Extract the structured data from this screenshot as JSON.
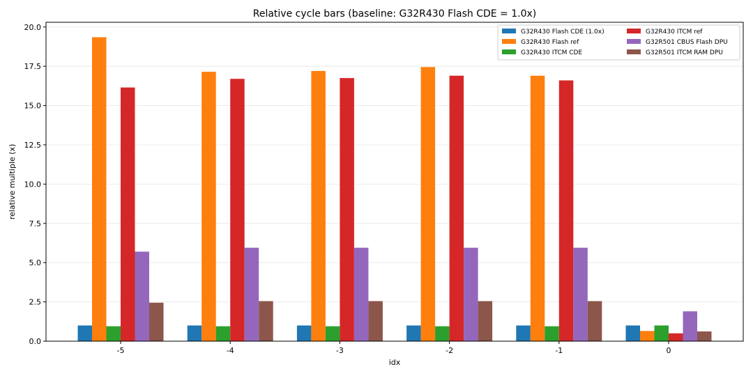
{
  "chart_data": {
    "type": "bar",
    "title": "Relative cycle bars (baseline: G32R430 Flash CDE = 1.0x)",
    "xlabel": "idx",
    "ylabel": "relative multiple (x)",
    "categories": [
      "-5",
      "-4",
      "-3",
      "-2",
      "-1",
      "0"
    ],
    "ylim": [
      0,
      20.3
    ],
    "yticks": [
      0.0,
      2.5,
      5.0,
      7.5,
      10.0,
      12.5,
      15.0,
      17.5,
      20.0
    ],
    "ytick_labels": [
      "0.0",
      "2.5",
      "5.0",
      "7.5",
      "10.0",
      "12.5",
      "15.0",
      "17.5",
      "20.0"
    ],
    "grid": "horizontal",
    "legend_position": "top-right",
    "series": [
      {
        "name": "G32R430 Flash CDE (1.0x)",
        "color": "#1f77b4",
        "values": [
          1.0,
          1.0,
          1.0,
          1.0,
          1.0,
          1.0
        ]
      },
      {
        "name": "G32R430 Flash ref",
        "color": "#ff7f0e",
        "values": [
          19.35,
          17.15,
          17.2,
          17.45,
          16.9,
          0.65
        ]
      },
      {
        "name": "G32R430 ITCM CDE",
        "color": "#2ca02c",
        "values": [
          0.95,
          0.95,
          0.95,
          0.95,
          0.95,
          1.0
        ]
      },
      {
        "name": "G32R430 ITCM ref",
        "color": "#d62728",
        "values": [
          16.15,
          16.7,
          16.75,
          16.9,
          16.6,
          0.5
        ]
      },
      {
        "name": "G32R501 CBUS Flash DPU",
        "color": "#9467bd",
        "values": [
          5.7,
          5.95,
          5.95,
          5.95,
          5.95,
          1.9
        ]
      },
      {
        "name": "G32R501 ITCM RAM DPU",
        "color": "#8c564b",
        "values": [
          2.45,
          2.55,
          2.55,
          2.55,
          2.55,
          0.62
        ]
      }
    ]
  }
}
